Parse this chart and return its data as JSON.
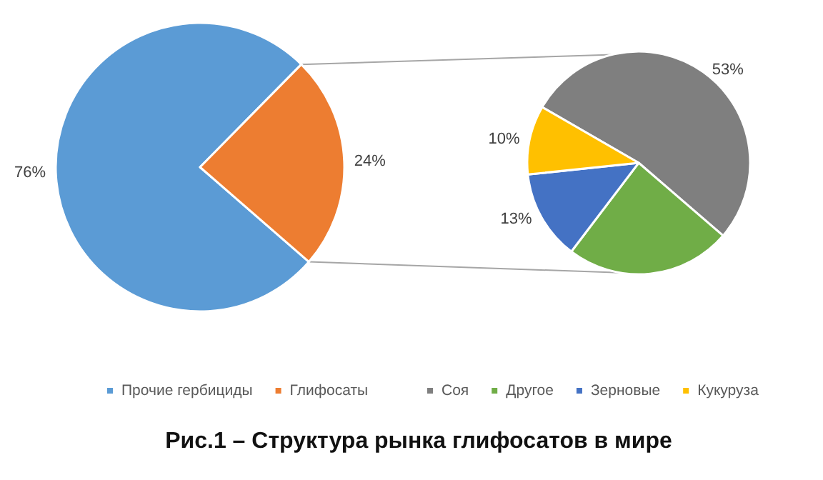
{
  "chart_data": [
    {
      "type": "pie",
      "title": "Рис.1 – Структура рынка глифосатов в мире",
      "categories": [
        "Прочие гербициды",
        "Глифосаты"
      ],
      "values": [
        76,
        24
      ],
      "colors": [
        "#5b9bd5",
        "#ed7d31"
      ],
      "value_labels": [
        "76%",
        "24%"
      ],
      "legend": "bottom"
    },
    {
      "type": "pie",
      "categories": [
        "Соя",
        "Другое",
        "Зерновые",
        "Кукуруза"
      ],
      "values": [
        53,
        24,
        13,
        10
      ],
      "colors": [
        "#7f7f7f",
        "#70ad47",
        "#4472c4",
        "#ffc000"
      ],
      "value_labels": [
        "53%",
        null,
        "13%",
        "10%"
      ],
      "legend": "bottom"
    }
  ]
}
